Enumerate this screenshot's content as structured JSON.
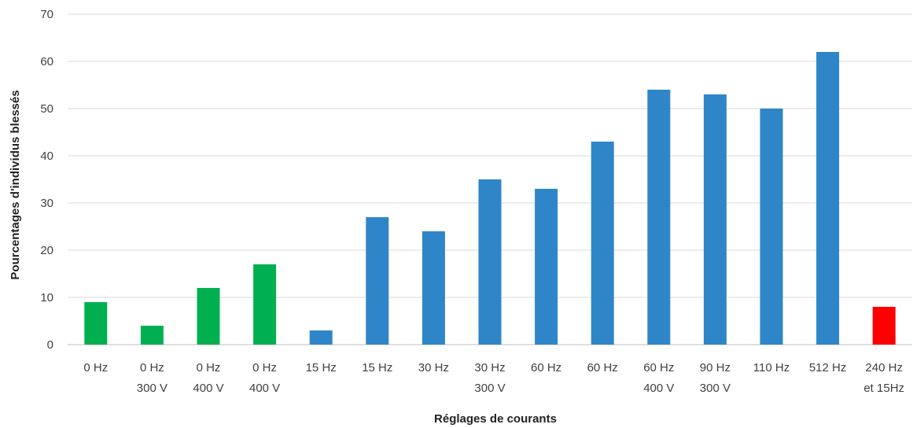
{
  "chart_data": {
    "type": "bar",
    "categories": [
      [
        "0 Hz"
      ],
      [
        "0 Hz",
        "300 V"
      ],
      [
        "0 Hz",
        "400 V"
      ],
      [
        "0 Hz",
        "400 V"
      ],
      [
        "15 Hz"
      ],
      [
        "15 Hz"
      ],
      [
        "30 Hz"
      ],
      [
        "30 Hz",
        "300 V"
      ],
      [
        "60 Hz"
      ],
      [
        "60 Hz"
      ],
      [
        "60 Hz",
        "400 V"
      ],
      [
        "90 Hz",
        "300 V"
      ],
      [
        "110 Hz"
      ],
      [
        "512 Hz"
      ],
      [
        "240 Hz",
        "et 15Hz"
      ]
    ],
    "values": [
      9,
      4,
      12,
      17,
      3,
      27,
      24,
      35,
      33,
      43,
      54,
      53,
      50,
      62,
      8
    ],
    "bar_colors": [
      "#00b050",
      "#00b050",
      "#00b050",
      "#00b050",
      "#2e86c8",
      "#2e86c8",
      "#2e86c8",
      "#2e86c8",
      "#2e86c8",
      "#2e86c8",
      "#2e86c8",
      "#2e86c8",
      "#2e86c8",
      "#2e86c8",
      "#ff0000"
    ],
    "xlabel": "Réglages de courants",
    "ylabel": "Pourcentages d'individus blessés",
    "ylim": [
      0,
      70
    ],
    "yticks": [
      "0",
      "10",
      "20",
      "30",
      "40",
      "50",
      "60",
      "70"
    ],
    "grid": true,
    "legend": "none"
  }
}
